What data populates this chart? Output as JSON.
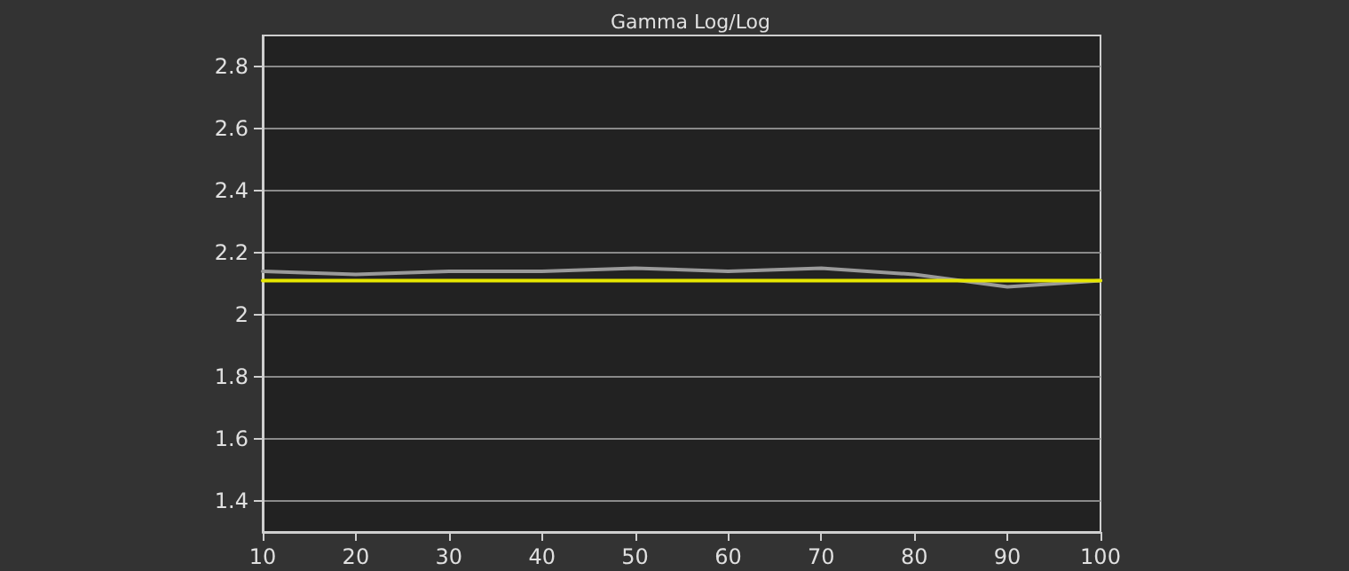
{
  "chart_data": {
    "type": "line",
    "title": "Gamma Log/Log",
    "x": [
      10,
      20,
      30,
      40,
      50,
      60,
      70,
      80,
      90,
      100
    ],
    "series": [
      {
        "color": "#9a9a9a",
        "values": [
          2.14,
          2.13,
          2.14,
          2.14,
          2.15,
          2.14,
          2.15,
          2.13,
          2.09,
          2.11
        ]
      },
      {
        "color": "#e6e600",
        "values": [
          2.11,
          2.11,
          2.11,
          2.11,
          2.11,
          2.11,
          2.11,
          2.11,
          2.11,
          2.11
        ]
      }
    ],
    "xlim": [
      10,
      100
    ],
    "xticks": [
      10,
      20,
      30,
      40,
      50,
      60,
      70,
      80,
      90,
      100
    ],
    "ylim": [
      1.3,
      2.9
    ],
    "yticks": [
      1.4,
      1.6,
      1.8,
      2,
      2.2,
      2.4,
      2.6,
      2.8
    ],
    "grid": "y",
    "marker": "none",
    "line_style": "solid"
  }
}
